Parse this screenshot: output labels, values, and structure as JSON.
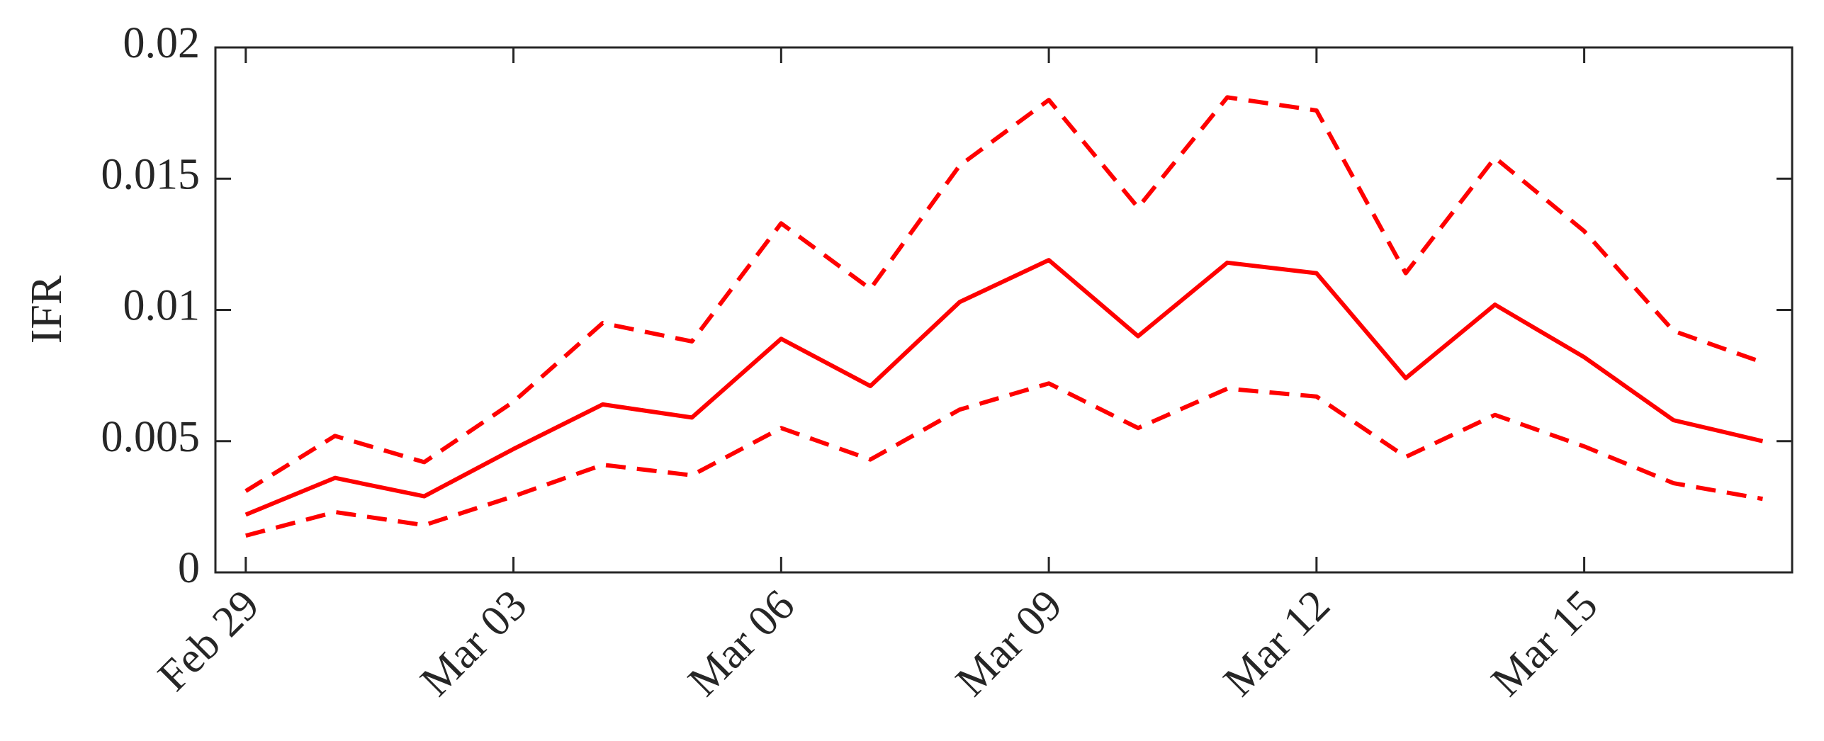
{
  "chart_data": {
    "type": "line",
    "ylabel": "IFR",
    "categories": [
      "Feb 29",
      null,
      null,
      "Mar 03",
      null,
      null,
      "Mar 06",
      null,
      null,
      "Mar 09",
      null,
      null,
      "Mar 12",
      null,
      null,
      "Mar 15",
      null,
      null
    ],
    "series": [
      {
        "color": "#ff0000",
        "linestyle": "solid",
        "values": [
          0.0022,
          0.0036,
          0.0029,
          0.0047,
          0.0064,
          0.0059,
          0.0089,
          0.0071,
          0.0103,
          0.0119,
          0.009,
          0.0118,
          0.0114,
          0.0074,
          0.0102,
          0.0082,
          0.0058,
          0.005
        ]
      },
      {
        "color": "#ff0000",
        "linestyle": "dashed",
        "values": [
          0.0031,
          0.0052,
          0.0042,
          0.0065,
          0.0095,
          0.0088,
          0.0133,
          0.0108,
          0.0155,
          0.018,
          0.0139,
          0.0181,
          0.0176,
          0.0114,
          0.0158,
          0.013,
          0.0092,
          0.008
        ]
      },
      {
        "color": "#ff0000",
        "linestyle": "dashed",
        "values": [
          0.0014,
          0.0023,
          0.0018,
          0.0029,
          0.0041,
          0.0037,
          0.0055,
          0.0043,
          0.0062,
          0.0072,
          0.0055,
          0.007,
          0.0067,
          0.0044,
          0.006,
          0.0048,
          0.0034,
          0.0028
        ]
      }
    ],
    "ylim": [
      0,
      0.02
    ],
    "yticks": [
      0,
      0.005,
      0.01,
      0.015,
      0.02
    ],
    "grid": false
  }
}
